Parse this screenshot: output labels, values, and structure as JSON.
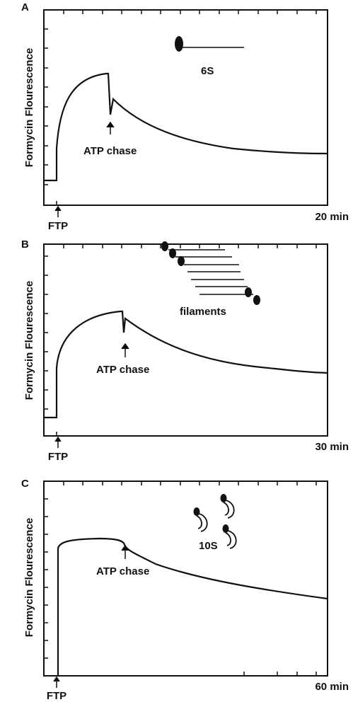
{
  "panels": [
    {
      "label": "A",
      "y_label": "Formycin Flourescence",
      "arrow_label": "ATP chase",
      "start_label": "FTP",
      "end_label": "20 min",
      "species_label": "6S"
    },
    {
      "label": "B",
      "y_label": "Formycin Flourescence",
      "arrow_label": "ATP chase",
      "start_label": "FTP",
      "end_label": "30 min",
      "species_label": "filaments"
    },
    {
      "label": "C",
      "y_label": "Formycin Flourescence",
      "arrow_label": "ATP chase",
      "start_label": "FTP",
      "end_label": "60 min",
      "species_label": "10S"
    }
  ]
}
